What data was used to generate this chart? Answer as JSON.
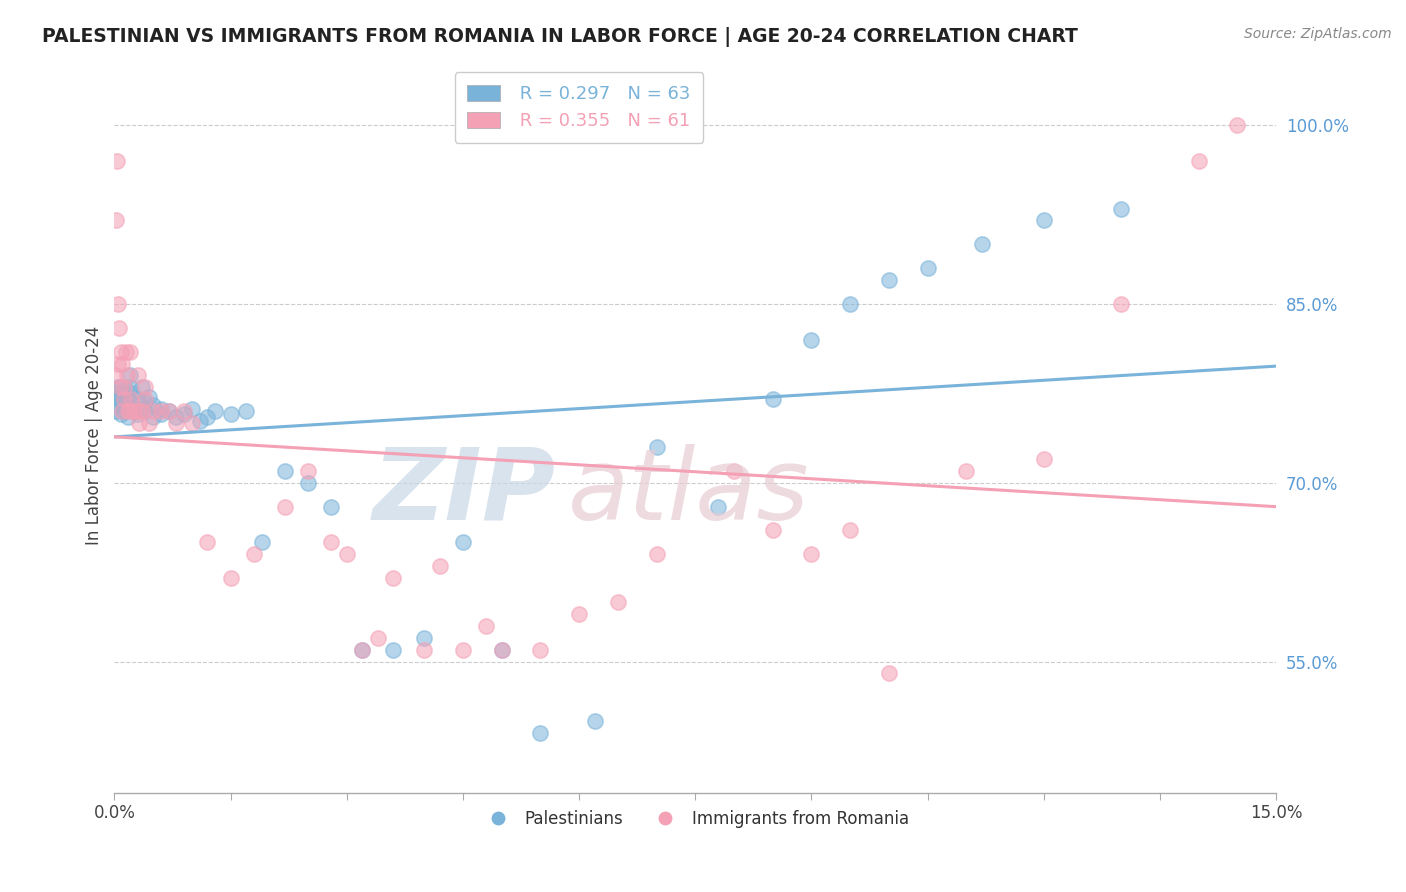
{
  "title": "PALESTINIAN VS IMMIGRANTS FROM ROMANIA IN LABOR FORCE | AGE 20-24 CORRELATION CHART",
  "source": "Source: ZipAtlas.com",
  "ylabel": "In Labor Force | Age 20-24",
  "legend1_r": "R = 0.297",
  "legend1_n": "N = 63",
  "legend2_r": "R = 0.355",
  "legend2_n": "N = 61",
  "color_blue": "#7ab3d9",
  "color_pink": "#f4a0b5",
  "xmin": 0.0,
  "xmax": 0.15,
  "ymin": 0.44,
  "ymax": 1.04,
  "blue_scatter_x": [
    0.0002,
    0.0003,
    0.0004,
    0.0005,
    0.0006,
    0.0007,
    0.0008,
    0.0009,
    0.001,
    0.0011,
    0.0012,
    0.0013,
    0.0014,
    0.0015,
    0.0016,
    0.0017,
    0.0018,
    0.002,
    0.002,
    0.0022,
    0.0023,
    0.0025,
    0.003,
    0.003,
    0.0032,
    0.0035,
    0.004,
    0.004,
    0.0045,
    0.005,
    0.005,
    0.006,
    0.006,
    0.007,
    0.008,
    0.009,
    0.01,
    0.011,
    0.012,
    0.013,
    0.015,
    0.017,
    0.019,
    0.022,
    0.025,
    0.028,
    0.032,
    0.036,
    0.04,
    0.045,
    0.05,
    0.055,
    0.062,
    0.07,
    0.078,
    0.085,
    0.09,
    0.095,
    0.1,
    0.105,
    0.112,
    0.12,
    0.13
  ],
  "blue_scatter_y": [
    0.76,
    0.775,
    0.78,
    0.77,
    0.765,
    0.78,
    0.758,
    0.772,
    0.768,
    0.775,
    0.76,
    0.77,
    0.765,
    0.778,
    0.77,
    0.762,
    0.755,
    0.78,
    0.79,
    0.768,
    0.775,
    0.76,
    0.77,
    0.758,
    0.762,
    0.78,
    0.76,
    0.768,
    0.772,
    0.755,
    0.765,
    0.758,
    0.762,
    0.76,
    0.755,
    0.758,
    0.762,
    0.752,
    0.755,
    0.76,
    0.758,
    0.76,
    0.65,
    0.71,
    0.7,
    0.68,
    0.56,
    0.56,
    0.57,
    0.65,
    0.56,
    0.49,
    0.5,
    0.73,
    0.68,
    0.77,
    0.82,
    0.85,
    0.87,
    0.88,
    0.9,
    0.92,
    0.93
  ],
  "pink_scatter_x": [
    0.0001,
    0.0002,
    0.0003,
    0.0004,
    0.0005,
    0.0006,
    0.0007,
    0.0008,
    0.001,
    0.001,
    0.0012,
    0.0013,
    0.0015,
    0.0016,
    0.0018,
    0.002,
    0.002,
    0.0022,
    0.0025,
    0.003,
    0.003,
    0.0032,
    0.0035,
    0.004,
    0.004,
    0.0045,
    0.005,
    0.006,
    0.007,
    0.008,
    0.009,
    0.01,
    0.012,
    0.015,
    0.018,
    0.022,
    0.025,
    0.028,
    0.03,
    0.032,
    0.034,
    0.036,
    0.04,
    0.042,
    0.045,
    0.048,
    0.05,
    0.055,
    0.06,
    0.065,
    0.07,
    0.08,
    0.085,
    0.09,
    0.095,
    0.1,
    0.11,
    0.12,
    0.13,
    0.14,
    0.145
  ],
  "pink_scatter_y": [
    0.79,
    0.92,
    0.97,
    0.85,
    0.8,
    0.83,
    0.78,
    0.81,
    0.8,
    0.76,
    0.77,
    0.78,
    0.81,
    0.79,
    0.76,
    0.81,
    0.76,
    0.77,
    0.76,
    0.79,
    0.76,
    0.75,
    0.76,
    0.77,
    0.78,
    0.75,
    0.76,
    0.76,
    0.76,
    0.75,
    0.76,
    0.75,
    0.65,
    0.62,
    0.64,
    0.68,
    0.71,
    0.65,
    0.64,
    0.56,
    0.57,
    0.62,
    0.56,
    0.63,
    0.56,
    0.58,
    0.56,
    0.56,
    0.59,
    0.6,
    0.64,
    0.71,
    0.66,
    0.64,
    0.66,
    0.54,
    0.71,
    0.72,
    0.85,
    0.97,
    1.0
  ]
}
